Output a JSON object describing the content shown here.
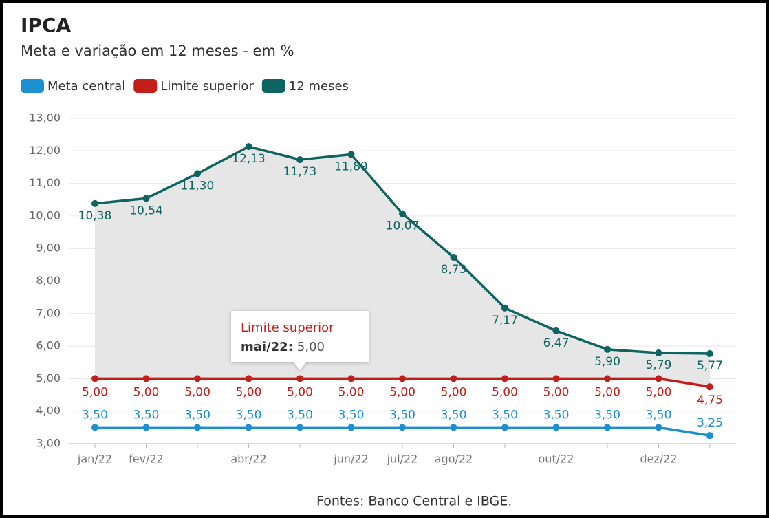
{
  "chart_data": {
    "type": "line",
    "title": "IPCA",
    "subtitle": "Meta e variação em 12 meses - em %",
    "categories": [
      "jan/22",
      "fev/22",
      null,
      "abr/22",
      null,
      "jun/22",
      "jul/22",
      "ago/22",
      null,
      "out/22",
      null,
      "dez/22",
      null
    ],
    "series": [
      {
        "name": "Meta central",
        "color": "#1b8fcf",
        "values": [
          3.5,
          3.5,
          3.5,
          3.5,
          3.5,
          3.5,
          3.5,
          3.5,
          3.5,
          3.5,
          3.5,
          3.5,
          3.25
        ],
        "value_labels": [
          "3,50",
          "3,50",
          "3,50",
          "3,50",
          "3,50",
          "3,50",
          "3,50",
          "3,50",
          "3,50",
          "3,50",
          "3,50",
          "3,50",
          "3,25"
        ]
      },
      {
        "name": "Limite superior",
        "color": "#c21f1a",
        "values": [
          5,
          5,
          5,
          5,
          5,
          5,
          5,
          5,
          5,
          5,
          5,
          5,
          4.75
        ],
        "value_labels": [
          "5,00",
          "5,00",
          "5,00",
          "5,00",
          "5,00",
          "5,00",
          "5,00",
          "5,00",
          "5,00",
          "5,00",
          "5,00",
          "5,00",
          "4,75"
        ]
      },
      {
        "name": "12 meses",
        "color": "#0d6460",
        "values": [
          10.38,
          10.54,
          11.3,
          12.13,
          11.73,
          11.89,
          10.07,
          8.73,
          7.17,
          6.47,
          5.9,
          5.79,
          5.77
        ],
        "value_labels": [
          "10,38",
          "10,54",
          "11,30",
          "12,13",
          "11,73",
          "11,89",
          "10,07",
          "8,73",
          "7,17",
          "6,47",
          "5,90",
          "5,79",
          "5,77"
        ]
      }
    ],
    "ylim": [
      3,
      13
    ],
    "yticks": [
      {
        "value": 3,
        "label": "3,00"
      },
      {
        "value": 4,
        "label": "4,00"
      },
      {
        "value": 5,
        "label": "5,00"
      },
      {
        "value": 6,
        "label": "6,00"
      },
      {
        "value": 7,
        "label": "7,00"
      },
      {
        "value": 8,
        "label": "8,00"
      },
      {
        "value": 9,
        "label": "9,00"
      },
      {
        "value": 10,
        "label": "10,00"
      },
      {
        "value": 11,
        "label": "11,00"
      },
      {
        "value": 12,
        "label": "12,00"
      },
      {
        "value": 13,
        "label": "13,00"
      }
    ],
    "grid": true,
    "legend": "top-left",
    "tooltip": {
      "category": "mai/22:"
    },
    "source": "Fontes: Banco Central e IBGE."
  }
}
